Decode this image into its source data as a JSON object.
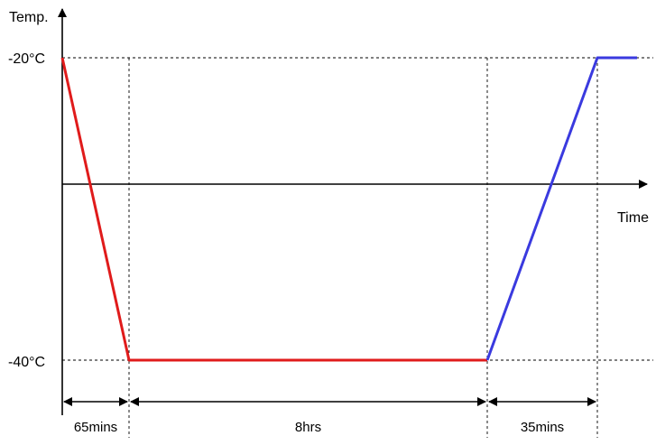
{
  "chart_data": {
    "type": "line",
    "ylabel": "Temp.",
    "xlabel": "Time",
    "y_ticks": [
      "-20°C",
      "-40°C"
    ],
    "y_values": [
      -20,
      -40
    ],
    "series": [
      {
        "color": "#e01b1b",
        "points": [
          {
            "t": 0,
            "temp": -20
          },
          {
            "t": 65,
            "temp": -40
          },
          {
            "t": 545,
            "temp": -40
          }
        ]
      },
      {
        "color": "#3a3adf",
        "points": [
          {
            "t": 545,
            "temp": -40
          },
          {
            "t": 580,
            "temp": -20
          },
          {
            "t": 600,
            "temp": -20
          }
        ]
      }
    ],
    "intervals": [
      {
        "label": "65mins",
        "start": 0,
        "end": 65
      },
      {
        "label": "8hrs",
        "start": 65,
        "end": 545
      },
      {
        "label": "35mins",
        "start": 545,
        "end": 580
      }
    ]
  }
}
